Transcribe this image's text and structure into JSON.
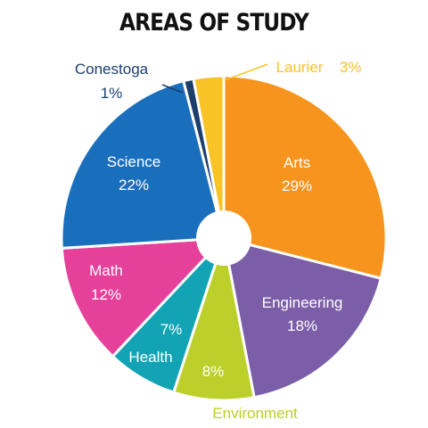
{
  "chart_data": {
    "type": "pie",
    "title": "AREAS OF STUDY",
    "donut_hole": true,
    "slices": [
      {
        "name": "Arts",
        "value": 29,
        "value_label": "29%",
        "color": "#f7941d"
      },
      {
        "name": "Engineering",
        "value": 18,
        "value_label": "18%",
        "color": "#7b5ea7"
      },
      {
        "name": "Environment",
        "value": 8,
        "value_label": "8%",
        "color": "#bccf2b"
      },
      {
        "name": "Health",
        "value": 7,
        "value_label": "7%",
        "color": "#12a4b4"
      },
      {
        "name": "Math",
        "value": 12,
        "value_label": "12%",
        "color": "#e5409a"
      },
      {
        "name": "Science",
        "value": 22,
        "value_label": "22%",
        "color": "#1a6fbd"
      },
      {
        "name": "Conestoga",
        "value": 1,
        "value_label": "1%",
        "color": "#1b3e6b"
      },
      {
        "name": "Laurier",
        "value": 3,
        "value_label": "3%",
        "color": "#f8c326"
      }
    ]
  }
}
